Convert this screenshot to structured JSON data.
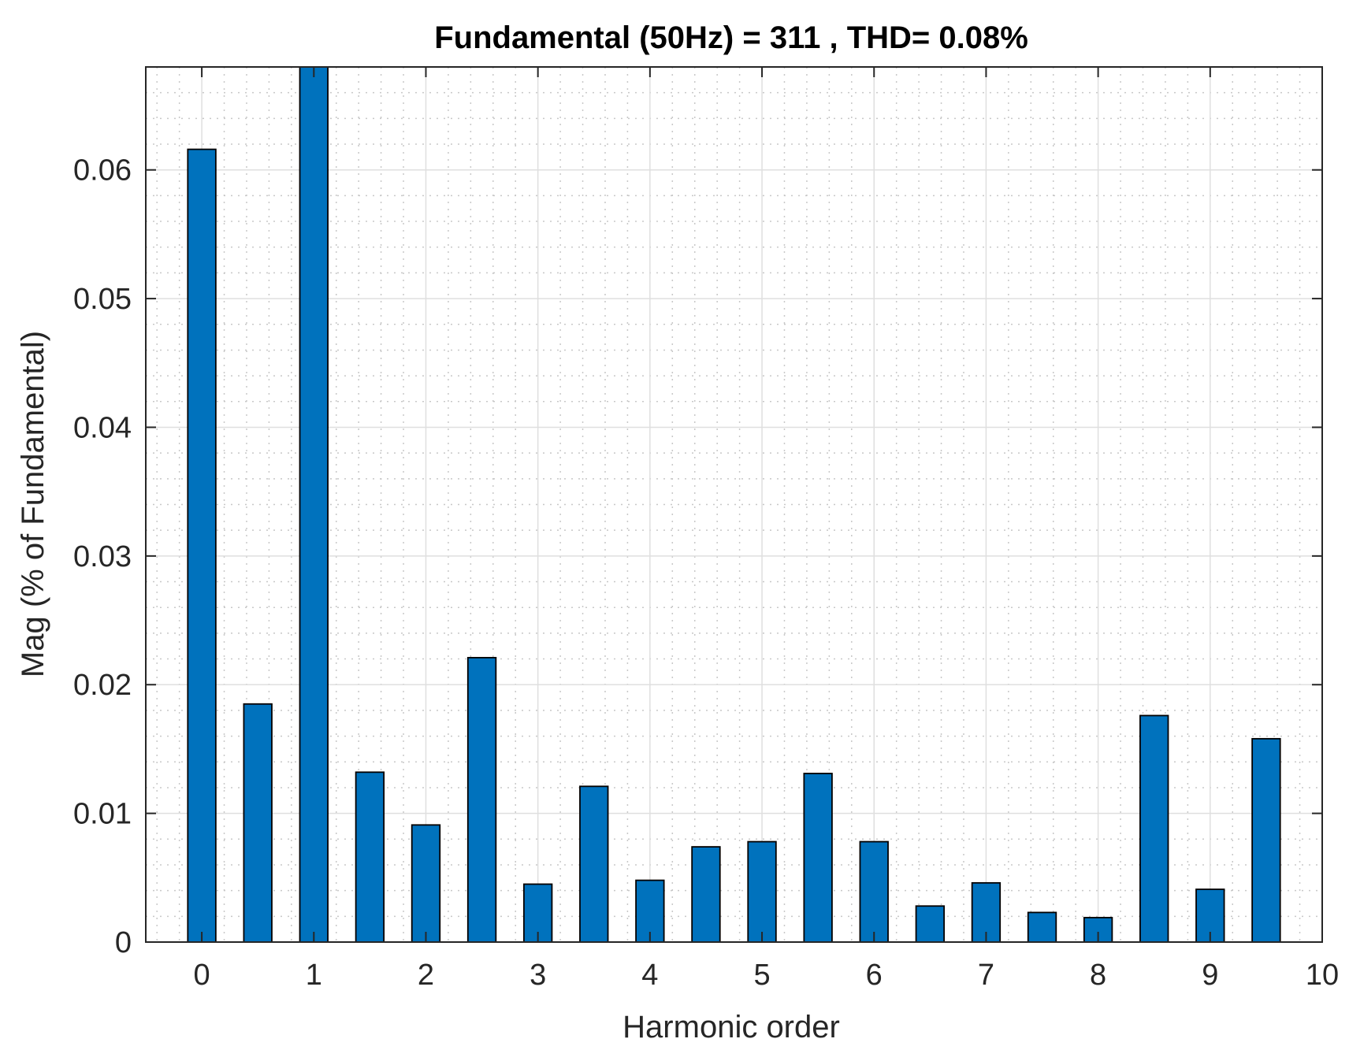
{
  "chart_data": {
    "type": "bar",
    "title": "Fundamental (50Hz) = 311 , THD= 0.08%",
    "xlabel": "Harmonic order",
    "ylabel": "Mag (% of Fundamental)",
    "x": [
      0,
      0.5,
      1,
      1.5,
      2,
      2.5,
      3,
      3.5,
      4,
      4.5,
      5,
      5.5,
      6,
      6.5,
      7,
      7.5,
      8,
      8.5,
      9,
      9.5
    ],
    "values": [
      0.0616,
      0.0185,
      0.068,
      0.0132,
      0.0091,
      0.0221,
      0.0045,
      0.0121,
      0.0048,
      0.0074,
      0.0078,
      0.0131,
      0.0078,
      0.0028,
      0.0046,
      0.0023,
      0.0019,
      0.0176,
      0.0041,
      0.0158
    ],
    "xlim": [
      -0.5,
      10
    ],
    "ylim": [
      0,
      0.068
    ],
    "xticks": [
      0,
      1,
      2,
      3,
      4,
      5,
      6,
      7,
      8,
      9,
      10
    ],
    "xtick_labels": [
      "0",
      "1",
      "2",
      "3",
      "4",
      "5",
      "6",
      "7",
      "8",
      "9",
      "10"
    ],
    "yticks": [
      0,
      0.01,
      0.02,
      0.03,
      0.04,
      0.05,
      0.06
    ],
    "ytick_labels": [
      "0",
      "0.01",
      "0.02",
      "0.03",
      "0.04",
      "0.05",
      "0.06"
    ],
    "bar_width_units": 0.25,
    "grid": true,
    "minor_grid": true,
    "colors": {
      "bar_fill": "#0072BD",
      "bar_edge": "#000000",
      "axes": "#262626",
      "grid_major": "#dfdfdf",
      "grid_minor": "#c8c8c8"
    }
  }
}
